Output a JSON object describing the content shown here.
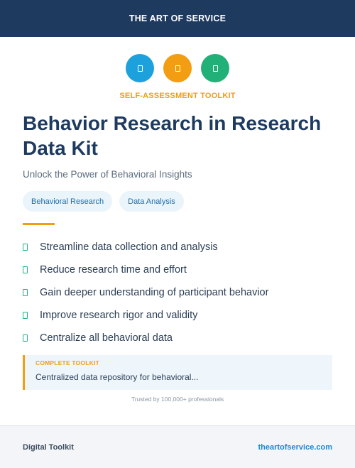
{
  "header": {
    "brand": "THE ART OF SERVICE",
    "background": "#1e3a5f"
  },
  "icons": [
    {
      "name": "blue-circle-icon",
      "color": "#1da1dc"
    },
    {
      "name": "orange-circle-icon",
      "color": "#f29d12"
    },
    {
      "name": "green-circle-icon",
      "color": "#21b078"
    }
  ],
  "hero": {
    "kicker": "SELF-ASSESSMENT TOOLKIT",
    "title": "Behavior Research in Research Data Kit",
    "subtitle": "Unlock the Power of Behavioral Insights"
  },
  "tags": [
    "Behavioral Research",
    "Data Analysis"
  ],
  "benefits": [
    "Streamline data collection and analysis",
    "Reduce research time and effort",
    "Gain deeper understanding of participant behavior",
    "Improve research rigor and validity",
    "Centralize all behavioral data"
  ],
  "callout": {
    "label": "COMPLETE TOOLKIT",
    "text": "Centralized data repository for behavioral..."
  },
  "trust": "Trusted by 100,000+ professionals",
  "footer": {
    "left": "Digital Toolkit",
    "right": "theartofservice.com"
  },
  "colors": {
    "accent": "#f29d12",
    "link": "#1b87d1",
    "check": "#27b07a"
  }
}
